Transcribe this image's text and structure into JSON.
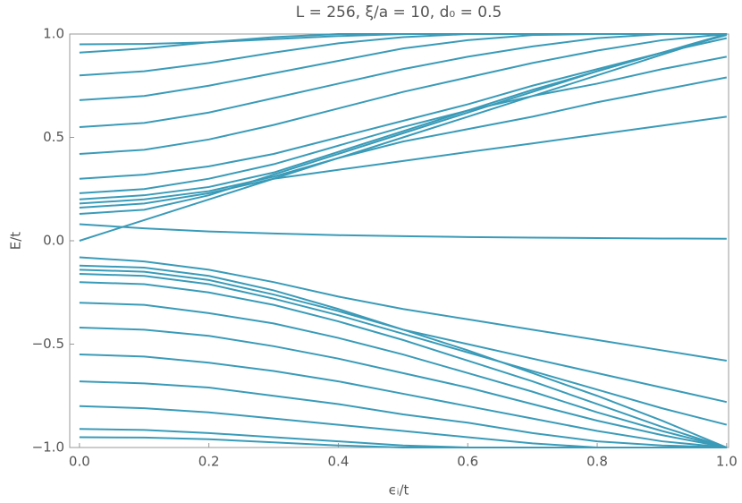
{
  "chart_data": {
    "type": "line",
    "title": "L = 256, ξ/a = 10, d₀ = 0.5",
    "x_label": "ϵᵢ/t",
    "y_label": "E/t",
    "color": "#3a9bb8",
    "x": [
      0,
      0.1,
      0.2,
      0.3,
      0.4,
      0.5,
      0.6,
      0.7,
      0.8,
      0.9,
      1.0
    ],
    "xlim": [
      -0.015,
      1.003
    ],
    "ylim": [
      -1,
      1
    ],
    "xticks": [
      {
        "value": 0,
        "label": "0.0"
      },
      {
        "value": 0.2,
        "label": "0.2"
      },
      {
        "value": 0.4,
        "label": "0.4"
      },
      {
        "value": 0.6,
        "label": "0.6"
      },
      {
        "value": 0.8,
        "label": "0.8"
      },
      {
        "value": 1,
        "label": "1.0"
      }
    ],
    "yticks": [
      {
        "value": -1,
        "label": "−1.0"
      },
      {
        "value": -0.5,
        "label": "−0.5"
      },
      {
        "value": 0,
        "label": "0.0"
      },
      {
        "value": 0.5,
        "label": "0.5"
      },
      {
        "value": 1,
        "label": "1.0"
      }
    ],
    "series": [
      {
        "values": [
          0.91,
          0.93,
          0.96,
          0.985,
          1,
          1,
          1,
          1,
          1,
          1,
          1
        ]
      },
      {
        "values": [
          0.8,
          0.82,
          0.86,
          0.91,
          0.955,
          0.985,
          1,
          1,
          1,
          1,
          1
        ]
      },
      {
        "values": [
          0.68,
          0.7,
          0.75,
          0.81,
          0.87,
          0.93,
          0.97,
          0.995,
          1,
          1,
          1
        ]
      },
      {
        "values": [
          0.55,
          0.57,
          0.62,
          0.69,
          0.76,
          0.83,
          0.89,
          0.94,
          0.98,
          1,
          1
        ]
      },
      {
        "values": [
          0.42,
          0.44,
          0.49,
          0.56,
          0.64,
          0.72,
          0.79,
          0.86,
          0.92,
          0.97,
          1
        ]
      },
      {
        "values": [
          0.3,
          0.32,
          0.36,
          0.42,
          0.5,
          0.58,
          0.66,
          0.75,
          0.83,
          0.91,
          0.98
        ]
      },
      {
        "values": [
          0.2,
          0.22,
          0.26,
          0.33,
          0.43,
          0.53,
          0.63,
          0.73,
          0.82,
          0.91,
          0.995
        ]
      },
      {
        "values": [
          0.13,
          0.15,
          0.22,
          0.32,
          0.42,
          0.52,
          0.62,
          0.72,
          0.82,
          0.91,
          1.0
        ]
      },
      {
        "values": [
          0,
          0.1,
          0.2,
          0.3,
          0.4,
          0.5,
          0.6,
          0.7,
          0.8,
          0.9,
          1.0
        ]
      },
      {
        "values": [
          0.95,
          0.952,
          0.96,
          0.975,
          0.99,
          1,
          1,
          1,
          1,
          1,
          1
        ]
      },
      {
        "values": [
          0.16,
          0.18,
          0.23,
          0.3,
          0.343,
          0.386,
          0.429,
          0.471,
          0.514,
          0.557,
          0.6
        ]
      },
      {
        "values": [
          0.18,
          0.2,
          0.24,
          0.31,
          0.4,
          0.48,
          0.54,
          0.6,
          0.67,
          0.73,
          0.79
        ]
      },
      {
        "values": [
          0.23,
          0.25,
          0.3,
          0.37,
          0.46,
          0.55,
          0.63,
          0.7,
          0.76,
          0.83,
          0.89
        ]
      },
      {
        "values": [
          0.08,
          0.06,
          0.045,
          0.035,
          0.027,
          0.022,
          0.018,
          0.015,
          0.013,
          0.011,
          0.01
        ]
      },
      {
        "values": [
          -0.08,
          -0.1,
          -0.14,
          -0.2,
          -0.27,
          -0.33,
          -0.38,
          -0.43,
          -0.48,
          -0.53,
          -0.58
        ]
      },
      {
        "values": [
          -0.12,
          -0.13,
          -0.17,
          -0.24,
          -0.33,
          -0.43,
          -0.53,
          -0.64,
          -0.75,
          -0.87,
          -1.0
        ]
      },
      {
        "values": [
          -0.2,
          -0.21,
          -0.25,
          -0.31,
          -0.39,
          -0.48,
          -0.58,
          -0.68,
          -0.79,
          -0.9,
          -1.0
        ]
      },
      {
        "values": [
          -0.3,
          -0.31,
          -0.35,
          -0.4,
          -0.47,
          -0.55,
          -0.64,
          -0.73,
          -0.83,
          -0.92,
          -1.0
        ]
      },
      {
        "values": [
          -0.42,
          -0.43,
          -0.46,
          -0.51,
          -0.57,
          -0.64,
          -0.71,
          -0.79,
          -0.87,
          -0.94,
          -1.0
        ]
      },
      {
        "values": [
          -0.55,
          -0.56,
          -0.59,
          -0.63,
          -0.68,
          -0.74,
          -0.8,
          -0.86,
          -0.92,
          -0.97,
          -1.0
        ]
      },
      {
        "values": [
          -0.68,
          -0.69,
          -0.71,
          -0.75,
          -0.79,
          -0.84,
          -0.88,
          -0.93,
          -0.97,
          -0.99,
          -1.0
        ]
      },
      {
        "values": [
          -0.8,
          -0.81,
          -0.83,
          -0.86,
          -0.89,
          -0.92,
          -0.95,
          -0.98,
          -1,
          -1,
          -1
        ]
      },
      {
        "values": [
          -0.91,
          -0.915,
          -0.93,
          -0.95,
          -0.97,
          -0.99,
          -1,
          -1,
          -1,
          -1,
          -1
        ]
      },
      {
        "values": [
          -0.95,
          -0.952,
          -0.96,
          -0.975,
          -0.99,
          -1,
          -1,
          -1,
          -1,
          -1,
          -1
        ]
      },
      {
        "values": [
          -0.14,
          -0.15,
          -0.19,
          -0.26,
          -0.34,
          -0.43,
          -0.5,
          -0.57,
          -0.64,
          -0.71,
          -0.78
        ]
      },
      {
        "values": [
          -0.16,
          -0.17,
          -0.21,
          -0.28,
          -0.36,
          -0.45,
          -0.54,
          -0.63,
          -0.72,
          -0.81,
          -0.89
        ]
      }
    ]
  }
}
